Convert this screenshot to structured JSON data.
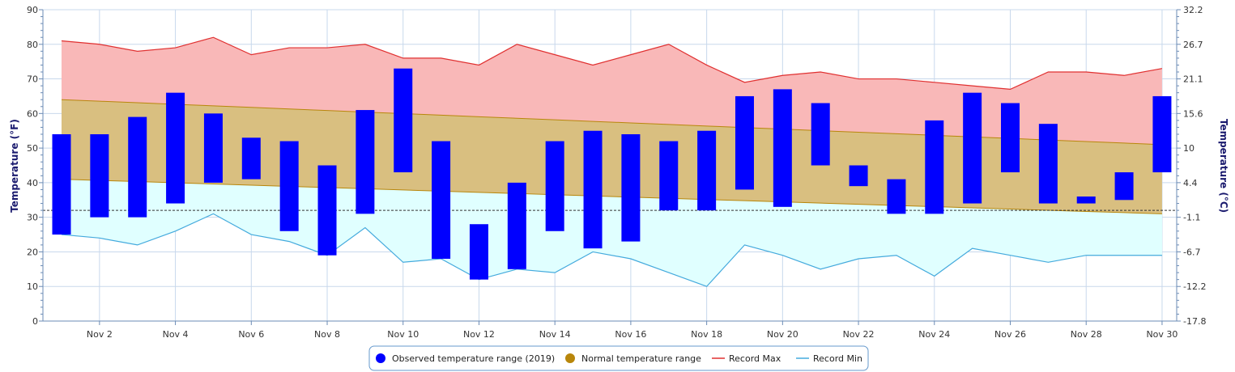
{
  "chart_data": {
    "type": "range-bar",
    "days": [
      1,
      2,
      3,
      4,
      5,
      6,
      7,
      8,
      9,
      10,
      11,
      12,
      13,
      14,
      15,
      16,
      17,
      18,
      19,
      20,
      21,
      22,
      23,
      24,
      25,
      26,
      27,
      28,
      29,
      30
    ],
    "x_tick_labels": [
      {
        "day": 2,
        "label": "Nov 2"
      },
      {
        "day": 4,
        "label": "Nov 4"
      },
      {
        "day": 6,
        "label": "Nov 6"
      },
      {
        "day": 8,
        "label": "Nov 8"
      },
      {
        "day": 10,
        "label": "Nov 10"
      },
      {
        "day": 12,
        "label": "Nov 12"
      },
      {
        "day": 14,
        "label": "Nov 14"
      },
      {
        "day": 16,
        "label": "Nov 16"
      },
      {
        "day": 18,
        "label": "Nov 18"
      },
      {
        "day": 20,
        "label": "Nov 20"
      },
      {
        "day": 22,
        "label": "Nov 22"
      },
      {
        "day": 24,
        "label": "Nov 24"
      },
      {
        "day": 26,
        "label": "Nov 26"
      },
      {
        "day": 28,
        "label": "Nov 28"
      },
      {
        "day": 30,
        "label": "Nov 30"
      }
    ],
    "y_left": {
      "title": "Temperature (°F)",
      "min": 0,
      "max": 90,
      "ticks": [
        "0",
        "10",
        "20",
        "30",
        "40",
        "50",
        "60",
        "70",
        "80",
        "90"
      ]
    },
    "y_right": {
      "title": "Temperature (°C)",
      "ticks": [
        {
          "f": 0,
          "label": "-17.8"
        },
        {
          "f": 10,
          "label": "-12.2"
        },
        {
          "f": 20,
          "label": "-6.7"
        },
        {
          "f": 30,
          "label": "-1.1"
        },
        {
          "f": 40,
          "label": "4.4"
        },
        {
          "f": 50,
          "label": "10"
        },
        {
          "f": 60,
          "label": "15.6"
        },
        {
          "f": 70,
          "label": "21.1"
        },
        {
          "f": 80,
          "label": "26.7"
        },
        {
          "f": 90,
          "label": "32.2"
        }
      ]
    },
    "freezing_line_f": 32,
    "series": [
      {
        "name": "Observed temperature range (2019)",
        "color": "#0000ff",
        "low": [
          25,
          30,
          30,
          34,
          40,
          41,
          26,
          19,
          31,
          43,
          18,
          12,
          15,
          26,
          21,
          23,
          32,
          32,
          38,
          33,
          45,
          39,
          31,
          31,
          34,
          43,
          34,
          34,
          35,
          43
        ],
        "high": [
          54,
          54,
          59,
          66,
          60,
          53,
          52,
          45,
          61,
          73,
          52,
          28,
          40,
          52,
          55,
          54,
          52,
          55,
          65,
          67,
          63,
          45,
          41,
          58,
          66,
          63,
          57,
          36,
          43,
          65
        ]
      },
      {
        "name": "Normal temperature range",
        "color": "#b8860b",
        "fill": "#d9bf80",
        "high_start": 64,
        "high_end": 51,
        "low_start": 41,
        "low_end": 31
      },
      {
        "name": "Record Max",
        "color": "#e03030",
        "fill": "#f9b8b8",
        "values": [
          81,
          80,
          78,
          79,
          82,
          77,
          79,
          79,
          80,
          76,
          76,
          74,
          80,
          77,
          74,
          77,
          80,
          74,
          69,
          71,
          72,
          70,
          70,
          69,
          68,
          67,
          72,
          72,
          71,
          73
        ]
      },
      {
        "name": "Record Min",
        "color": "#44aadd",
        "fill": "#e0ffff",
        "values": [
          25,
          24,
          22,
          26,
          31,
          25,
          23,
          19,
          27,
          17,
          18,
          12,
          15,
          14,
          20,
          18,
          14,
          10,
          22,
          19,
          15,
          18,
          19,
          13,
          21,
          19,
          17,
          19,
          19,
          19
        ]
      }
    ],
    "grid": true,
    "legend_position": "bottom-center"
  },
  "legend": {
    "observed_label": "Observed temperature range (2019)",
    "normal_label": "Normal temperature range",
    "record_max_label": "Record Max",
    "record_min_label": "Record Min"
  }
}
